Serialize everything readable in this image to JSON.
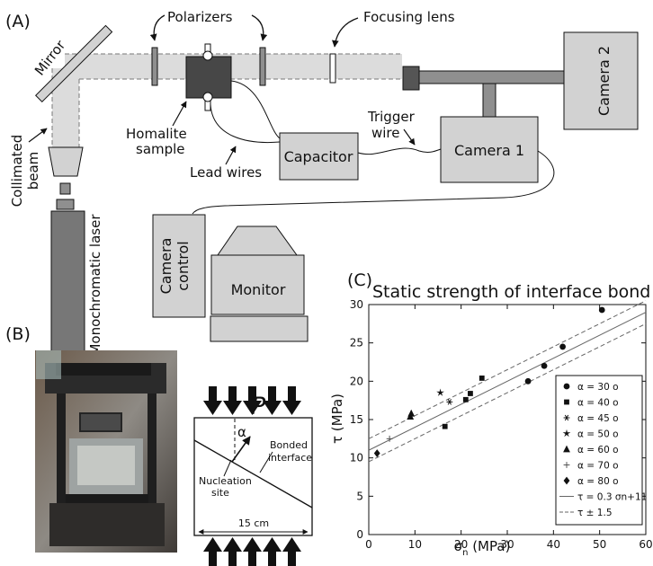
{
  "panel_a": {
    "label": "(A)",
    "polarizers": "Polarizers",
    "focusing_lens": "Focusing lens",
    "camera2": "Camera 2",
    "mirror": "Mirror",
    "homalite_line1": "Homalite",
    "homalite_line2": "sample",
    "trigger_line1": "Trigger",
    "trigger_line2": "wire",
    "capacitor": "Capacitor",
    "camera1": "Camera 1",
    "lead_wires": "Lead wires",
    "collimated_line1": "Collimated",
    "collimated_line2": "beam",
    "laser": "Monochromatic laser",
    "camera_control_line1": "Camera",
    "camera_control_line2": "control",
    "monitor": "Monitor"
  },
  "panel_b": {
    "label": "(B)",
    "load_symbol": "P",
    "angle_symbol": "α",
    "bonded_line1": "Bonded",
    "bonded_line2": "interface",
    "nucleation_line1": "Nucleation",
    "nucleation_line2": "site",
    "width_label": "15 cm"
  },
  "panel_c": {
    "label": "(C)"
  },
  "chart_data": {
    "type": "scatter",
    "title": "Static strength of interface bond",
    "xlabel": "σn (MPa)",
    "ylabel": "τ (MPa)",
    "xlim": [
      0,
      60
    ],
    "ylim": [
      0,
      30
    ],
    "xticks": [
      0,
      10,
      20,
      30,
      40,
      50,
      60
    ],
    "yticks": [
      0,
      5,
      10,
      15,
      20,
      25,
      30
    ],
    "legend_position": "right",
    "series": [
      {
        "name": "α = 30 o",
        "marker": "circle",
        "points": [
          [
            34.5,
            20.0
          ],
          [
            38,
            22.0
          ],
          [
            42,
            24.5
          ],
          [
            50.5,
            29.3
          ]
        ]
      },
      {
        "name": "α = 40 o",
        "marker": "square",
        "points": [
          [
            16.5,
            14.1
          ],
          [
            21,
            17.6
          ],
          [
            22,
            18.4
          ],
          [
            24.5,
            20.4
          ]
        ]
      },
      {
        "name": "α = 45 o",
        "marker": "asterisk",
        "points": [
          [
            17.5,
            17.3
          ]
        ]
      },
      {
        "name": "α = 50 o",
        "marker": "star",
        "points": [
          [
            15.5,
            18.5
          ]
        ]
      },
      {
        "name": "α = 60 o",
        "marker": "triangle",
        "points": [
          [
            9,
            15.4
          ],
          [
            9.2,
            15.8
          ]
        ]
      },
      {
        "name": "α = 70 o",
        "marker": "plus",
        "points": [
          [
            4.5,
            12.5
          ]
        ]
      },
      {
        "name": "α = 80 o",
        "marker": "diamond",
        "points": [
          [
            1.8,
            10.6
          ]
        ]
      }
    ],
    "fit": {
      "name": "τ = 0.3 σn+11",
      "slope": 0.3,
      "intercept": 11,
      "band": 1.5,
      "band_name": "τ ± 1.5"
    }
  }
}
